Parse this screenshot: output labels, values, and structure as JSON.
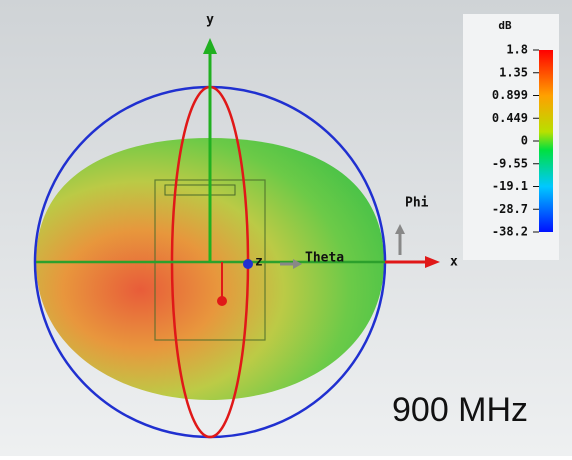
{
  "axes": {
    "y": "y",
    "x": "x",
    "z": "z",
    "theta": "Theta",
    "phi": "Phi"
  },
  "colorbar": {
    "title": "dB",
    "labels": [
      "1.8",
      "1.35",
      "0.899",
      "0.449",
      "0",
      "-9.55",
      "-19.1",
      "-28.7",
      "-38.2"
    ]
  },
  "frequency": "900 MHz"
}
